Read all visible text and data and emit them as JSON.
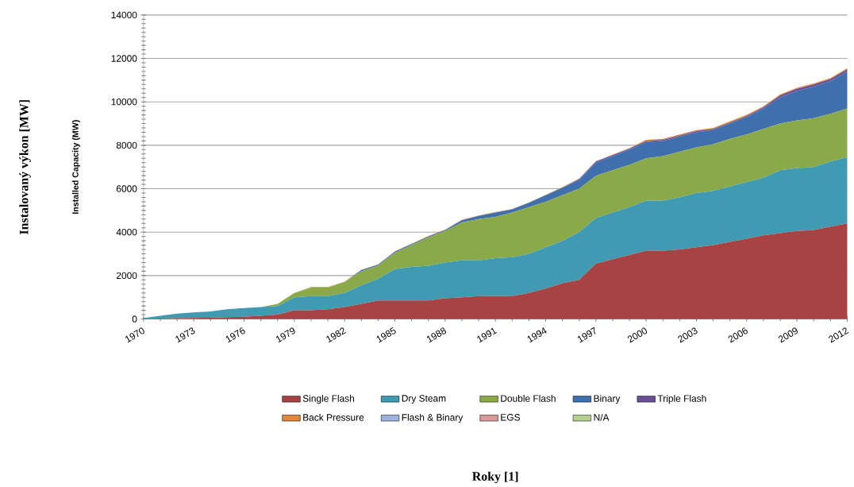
{
  "chart_data": {
    "type": "area",
    "stacked": true,
    "ylabel": "Installed Capacity (MW)",
    "annotations": [
      "Instalovaný výkon [MW]",
      "Roky [1]"
    ],
    "x": [
      1970,
      1971,
      1972,
      1973,
      1974,
      1975,
      1976,
      1977,
      1978,
      1979,
      1980,
      1981,
      1982,
      1983,
      1984,
      1985,
      1986,
      1987,
      1988,
      1989,
      1990,
      1991,
      1992,
      1993,
      1994,
      1995,
      1996,
      1997,
      1998,
      1999,
      2000,
      2001,
      2002,
      2003,
      2004,
      2005,
      2006,
      2007,
      2008,
      2009,
      2010,
      2011,
      2012
    ],
    "xlim": [
      1970,
      2012
    ],
    "xticks": [
      1970,
      1973,
      1976,
      1979,
      1982,
      1985,
      1988,
      1991,
      1994,
      1997,
      2000,
      2003,
      2006,
      2009,
      2012
    ],
    "ylim": [
      0,
      14000
    ],
    "yticks": [
      0,
      2000,
      4000,
      6000,
      8000,
      10000,
      12000,
      14000
    ],
    "grid": "y",
    "legend": "bottom",
    "series": [
      {
        "name": "Single Flash",
        "color": "#a94343",
        "values": [
          0,
          20,
          40,
          50,
          60,
          80,
          100,
          150,
          200,
          400,
          400,
          450,
          550,
          700,
          850,
          850,
          850,
          850,
          950,
          1000,
          1050,
          1050,
          1050,
          1200,
          1400,
          1650,
          1800,
          2550,
          2750,
          2950,
          3150,
          3150,
          3200,
          3300,
          3400,
          3550,
          3700,
          3850,
          3950,
          4050,
          4100,
          4250,
          4400
        ]
      },
      {
        "name": "Dry Steam",
        "color": "#3f9ab2",
        "values": [
          50,
          130,
          210,
          250,
          290,
          370,
          400,
          400,
          400,
          600,
          650,
          600,
          650,
          850,
          1000,
          1450,
          1550,
          1600,
          1650,
          1700,
          1650,
          1750,
          1800,
          1800,
          1900,
          1950,
          2200,
          2100,
          2150,
          2200,
          2300,
          2300,
          2400,
          2500,
          2500,
          2550,
          2600,
          2650,
          2900,
          2900,
          2900,
          3000,
          3050
        ]
      },
      {
        "name": "Double Flash",
        "color": "#8aaa4a",
        "values": [
          0,
          0,
          0,
          0,
          0,
          0,
          0,
          0,
          100,
          200,
          400,
          400,
          500,
          650,
          600,
          750,
          1000,
          1300,
          1450,
          1750,
          1900,
          1900,
          2050,
          2150,
          2100,
          2100,
          2000,
          1950,
          1950,
          1950,
          1950,
          2050,
          2100,
          2100,
          2150,
          2200,
          2200,
          2250,
          2150,
          2200,
          2250,
          2200,
          2250
        ]
      },
      {
        "name": "Binary",
        "color": "#3f6fad",
        "values": [
          0,
          0,
          0,
          0,
          0,
          0,
          0,
          0,
          0,
          0,
          0,
          0,
          0,
          50,
          50,
          50,
          50,
          50,
          50,
          100,
          150,
          200,
          150,
          200,
          300,
          350,
          400,
          600,
          650,
          700,
          750,
          700,
          700,
          700,
          650,
          700,
          800,
          950,
          1200,
          1350,
          1450,
          1500,
          1700
        ]
      },
      {
        "name": "Triple Flash",
        "color": "#6a4f96",
        "values": [
          0,
          0,
          0,
          0,
          0,
          0,
          0,
          0,
          0,
          0,
          0,
          0,
          0,
          0,
          0,
          0,
          0,
          0,
          0,
          0,
          0,
          0,
          0,
          0,
          0,
          0,
          50,
          50,
          50,
          50,
          50,
          50,
          50,
          50,
          50,
          50,
          50,
          50,
          100,
          100,
          100,
          100,
          100
        ]
      },
      {
        "name": "Back Pressure",
        "color": "#e0883a",
        "values": [
          0,
          0,
          0,
          0,
          0,
          0,
          0,
          0,
          0,
          0,
          20,
          20,
          20,
          20,
          20,
          20,
          20,
          20,
          20,
          20,
          20,
          20,
          20,
          20,
          20,
          20,
          20,
          20,
          20,
          20,
          50,
          50,
          50,
          50,
          50,
          50,
          50,
          50,
          50,
          50,
          50,
          50,
          50
        ]
      },
      {
        "name": "Flash & Binary",
        "color": "#9db3dc",
        "values": [
          null,
          null,
          null,
          null,
          null,
          null,
          null,
          null,
          null,
          null,
          null,
          null,
          null,
          null,
          null,
          null,
          null,
          null,
          null,
          null,
          null,
          null,
          null,
          null,
          null,
          null,
          null,
          null,
          null,
          null,
          null,
          null,
          null,
          null,
          null,
          null,
          null,
          null,
          null,
          null,
          null,
          null,
          null
        ]
      },
      {
        "name": "EGS",
        "color": "#d89a9a",
        "values": [
          null,
          null,
          null,
          null,
          null,
          null,
          null,
          null,
          null,
          null,
          null,
          null,
          null,
          null,
          null,
          null,
          null,
          null,
          null,
          null,
          null,
          null,
          null,
          null,
          null,
          null,
          null,
          null,
          null,
          null,
          null,
          null,
          null,
          null,
          null,
          null,
          null,
          null,
          null,
          null,
          null,
          null,
          null
        ]
      },
      {
        "name": "N/A",
        "color": "#b8d08f",
        "values": [
          null,
          null,
          null,
          null,
          null,
          null,
          null,
          null,
          null,
          null,
          null,
          null,
          null,
          null,
          null,
          null,
          null,
          null,
          null,
          null,
          null,
          null,
          null,
          null,
          null,
          null,
          null,
          null,
          null,
          null,
          null,
          null,
          null,
          null,
          null,
          null,
          null,
          null,
          null,
          null,
          null,
          null,
          null
        ]
      }
    ]
  }
}
